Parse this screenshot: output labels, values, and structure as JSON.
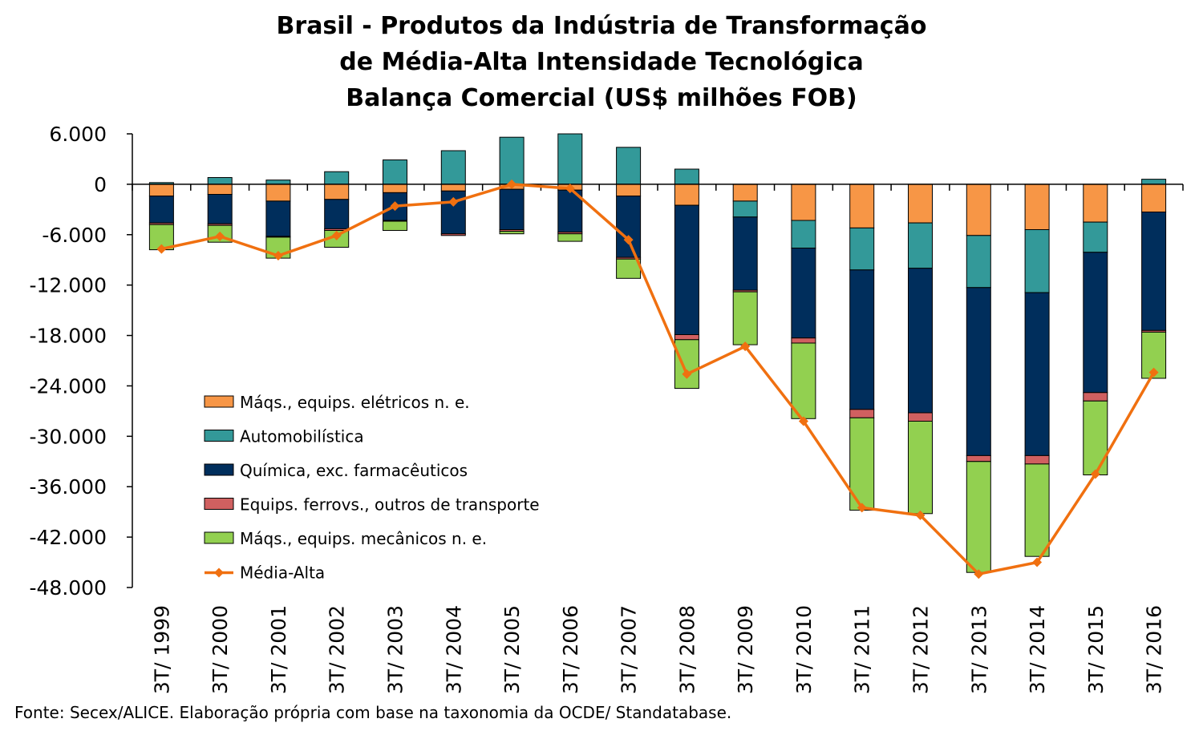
{
  "chart_data": {
    "type": "bar",
    "stacked": true,
    "title_lines": [
      "Brasil - Produtos da Indústria de Transformação",
      "de Média-Alta Intensidade Tecnológica",
      "Balança Comercial (US$ milhões FOB)"
    ],
    "categories": [
      "3T/ 1999",
      "3T/ 2000",
      "3T/ 2001",
      "3T/ 2002",
      "3T/ 2003",
      "3T/ 2004",
      "3T/ 2005",
      "3T/ 2006",
      "3T/ 2007",
      "3T/ 2008",
      "3T/ 2009",
      "3T/ 2010",
      "3T/ 2011",
      "3T/ 2012",
      "3T/ 2013",
      "3T/ 2014",
      "3T/ 2015",
      "3T/ 2016"
    ],
    "ylim": [
      -48000,
      6000
    ],
    "yticks": [
      6000,
      0,
      -6000,
      -12000,
      -18000,
      -24000,
      -30000,
      -36000,
      -42000,
      -48000
    ],
    "ytick_labels": [
      "6.000",
      "0",
      "-6.000",
      "-12.000",
      "-18.000",
      "-24.000",
      "-30.000",
      "-36.000",
      "-42.000",
      "-48.000"
    ],
    "series": [
      {
        "name": "Máqs., equips. elétricos n. e.",
        "color": "#F79646",
        "values": [
          -1400,
          -1200,
          -2000,
          -1800,
          -1000,
          -800,
          -600,
          -700,
          -1400,
          -2500,
          -2000,
          -4300,
          -5200,
          -4600,
          -6100,
          -5400,
          -4500,
          -3300
        ]
      },
      {
        "name": "Automobilística",
        "color": "#339999",
        "values": [
          200,
          800,
          500,
          1500,
          2900,
          4000,
          5600,
          6000,
          4400,
          1800,
          -1900,
          -3300,
          -5000,
          -5400,
          -6200,
          -7500,
          -3600,
          600
        ]
      },
      {
        "name": "Química, exc. farmacêuticos",
        "color": "#002E5C",
        "values": [
          -3200,
          -3500,
          -4200,
          -3500,
          -3300,
          -5100,
          -4800,
          -5000,
          -7300,
          -15400,
          -8700,
          -10700,
          -16600,
          -17200,
          -20000,
          -19400,
          -16700,
          -14100
        ]
      },
      {
        "name": "Equips. ferrovs., outros de transporte",
        "color": "#D06060",
        "values": [
          -200,
          -200,
          -100,
          -200,
          -100,
          -200,
          -200,
          -200,
          -200,
          -600,
          -200,
          -600,
          -1000,
          -1000,
          -700,
          -1000,
          -1000,
          -200
        ]
      },
      {
        "name": "Máqs., equips. mecânicos  n. e.",
        "color": "#92D050",
        "values": [
          -3000,
          -2000,
          -2500,
          -2000,
          -1100,
          0,
          -300,
          -900,
          -2300,
          -5800,
          -6300,
          -9000,
          -11000,
          -11000,
          -13200,
          -11000,
          -8800,
          -5500
        ]
      }
    ],
    "line": {
      "name": "Média-Alta",
      "color": "#F07010",
      "values": [
        -7700,
        -6200,
        -8500,
        -6100,
        -2600,
        -2100,
        0,
        -500,
        -6600,
        -22600,
        -19300,
        -28200,
        -38500,
        -39400,
        -46400,
        -45000,
        -34500,
        -22400
      ]
    },
    "legend": {
      "position": "center-left"
    },
    "grid": false
  },
  "footer": {
    "source": "Fonte: Secex/ALICE. Elaboração própria com base na taxonomia da OCDE/ Standatabase."
  }
}
